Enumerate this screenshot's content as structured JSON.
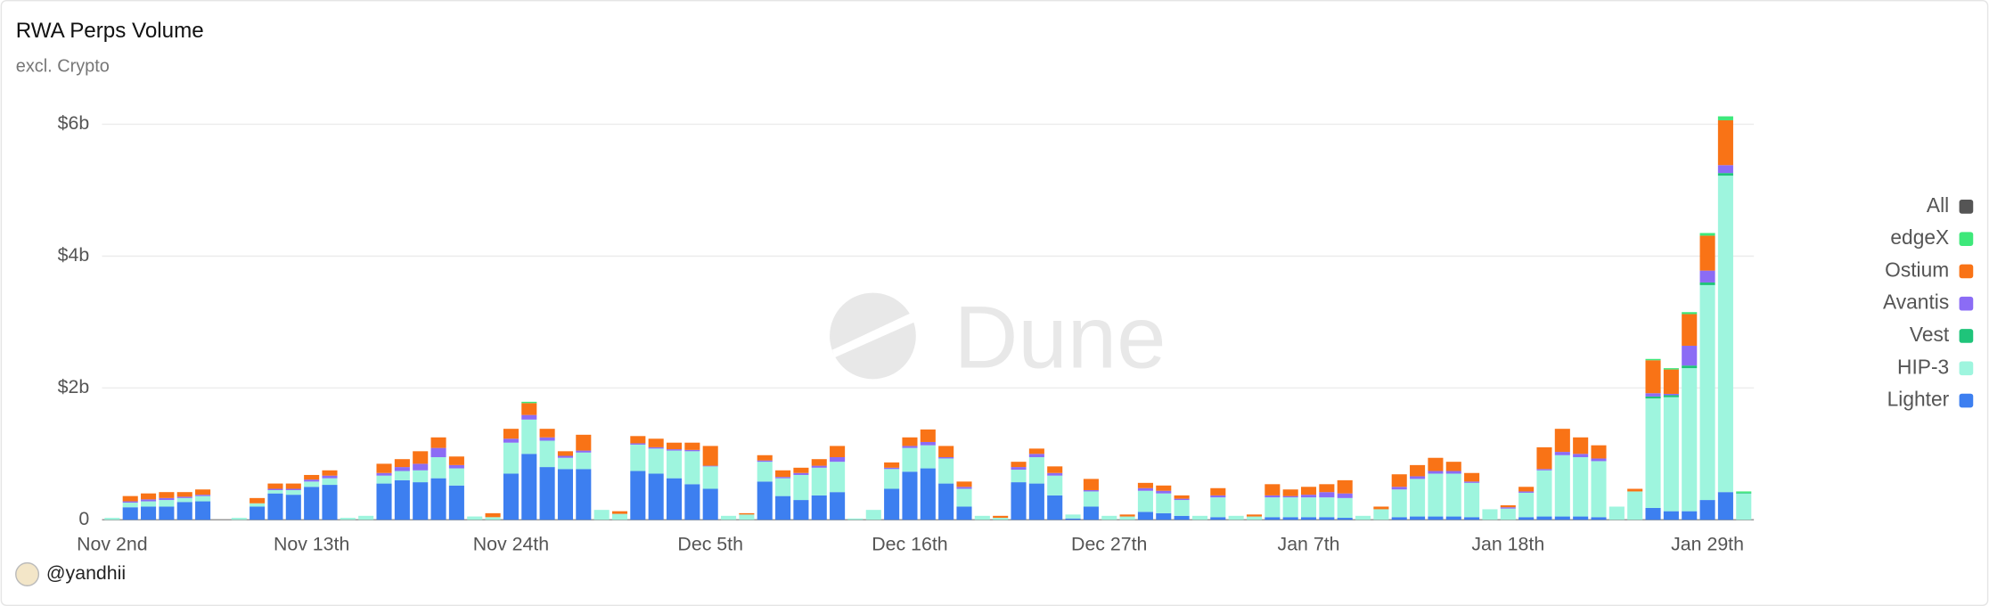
{
  "chart_data": {
    "type": "stacked_bar",
    "title": "RWA Perps Volume",
    "subtitle": "excl. Crypto",
    "watermark": "Dune",
    "author": "@yandhii",
    "categories": [
      "Nov 2nd",
      null,
      null,
      null,
      null,
      null,
      null,
      null,
      null,
      null,
      null,
      "Nov 13th",
      null,
      null,
      null,
      null,
      null,
      null,
      null,
      null,
      null,
      null,
      "Nov 24th",
      null,
      null,
      null,
      null,
      null,
      null,
      null,
      null,
      null,
      null,
      "Dec 5th",
      null,
      null,
      null,
      null,
      null,
      null,
      null,
      null,
      null,
      null,
      "Dec 16th",
      null,
      null,
      null,
      null,
      null,
      null,
      null,
      null,
      null,
      null,
      "Dec 27th",
      null,
      null,
      null,
      null,
      null,
      null,
      null,
      null,
      null,
      null,
      "Jan 7th",
      null,
      null,
      null,
      null,
      null,
      null,
      null,
      null,
      null,
      null,
      "Jan 18th",
      null,
      null,
      null,
      null,
      null,
      null,
      null,
      null,
      null,
      null,
      "Jan 29th",
      null,
      null
    ],
    "ylim": [
      0,
      6
    ],
    "yticks": [
      0,
      {
        "value": 2,
        "label": "$2b"
      },
      {
        "value": 4,
        "label": "$4b"
      },
      {
        "value": 6,
        "label": "$6b"
      }
    ],
    "grid": true,
    "series": [
      {
        "name": "Lighter",
        "color": "#3d7ff0",
        "values": [
          0,
          0.19,
          0.2,
          0.2,
          0.27,
          0.28,
          0,
          0,
          0.2,
          0.4,
          0.38,
          0.5,
          0.53,
          0,
          0,
          0.55,
          0.6,
          0.57,
          0.63,
          0.52,
          0,
          0,
          0.7,
          1.0,
          0.8,
          0.77,
          0.77,
          0,
          0,
          0.74,
          0.7,
          0.63,
          0.54,
          0.47,
          0,
          0,
          0.58,
          0.36,
          0.3,
          0.37,
          0.42,
          0,
          0,
          0.47,
          0.73,
          0.78,
          0.55,
          0.2,
          0,
          0,
          0.57,
          0.55,
          0.37,
          0.02,
          0.2,
          0,
          0,
          0.12,
          0.1,
          0.06,
          0,
          0.04,
          0,
          0,
          0.04,
          0.04,
          0.04,
          0.04,
          0.03,
          0,
          0,
          0.04,
          0.05,
          0.05,
          0.05,
          0.04,
          0,
          0,
          0.04,
          0.05,
          0.05,
          0.05,
          0.04,
          0,
          0,
          0.18,
          0.13,
          0.13,
          0.3,
          0.42,
          0
        ]
      },
      {
        "name": "HIP-3",
        "color": "#9ef5de",
        "values": [
          0.03,
          0.07,
          0.08,
          0.1,
          0.06,
          0.08,
          0,
          0.03,
          0.05,
          0.05,
          0.07,
          0.08,
          0.1,
          0.03,
          0.06,
          0.12,
          0.14,
          0.18,
          0.32,
          0.26,
          0.05,
          0.04,
          0.47,
          0.52,
          0.4,
          0.17,
          0.25,
          0.15,
          0.09,
          0.4,
          0.38,
          0.42,
          0.5,
          0.34,
          0.06,
          0.08,
          0.3,
          0.27,
          0.38,
          0.42,
          0.46,
          0.02,
          0.15,
          0.3,
          0.36,
          0.35,
          0.38,
          0.27,
          0.06,
          0.03,
          0.19,
          0.4,
          0.3,
          0.06,
          0.23,
          0.06,
          0.05,
          0.32,
          0.3,
          0.24,
          0.06,
          0.3,
          0.06,
          0.05,
          0.3,
          0.3,
          0.3,
          0.3,
          0.3,
          0.06,
          0.16,
          0.42,
          0.57,
          0.65,
          0.65,
          0.52,
          0.16,
          0.17,
          0.37,
          0.7,
          0.93,
          0.9,
          0.85,
          0.2,
          0.43,
          1.66,
          1.73,
          2.17,
          3.26,
          4.8,
          0.4
        ]
      },
      {
        "name": "Vest",
        "color": "#1fc47a",
        "values": [
          0,
          0,
          0,
          0,
          0,
          0,
          0,
          0,
          0,
          0,
          0,
          0,
          0,
          0,
          0,
          0,
          0,
          0,
          0,
          0,
          0,
          0,
          0,
          0,
          0,
          0,
          0,
          0,
          0,
          0,
          0,
          0,
          0,
          0,
          0,
          0,
          0,
          0,
          0,
          0,
          0,
          0,
          0,
          0,
          0,
          0,
          0,
          0,
          0,
          0,
          0,
          0,
          0,
          0,
          0,
          0,
          0,
          0,
          0,
          0,
          0,
          0,
          0,
          0,
          0,
          0,
          0,
          0,
          0,
          0,
          0,
          0,
          0,
          0,
          0,
          0,
          0,
          0,
          0,
          0,
          0,
          0,
          0,
          0,
          0,
          0.03,
          0.03,
          0.04,
          0.04,
          0.04,
          0.01
        ]
      },
      {
        "name": "Avantis",
        "color": "#8b6cf5",
        "values": [
          0,
          0.02,
          0.03,
          0.03,
          0.02,
          0.02,
          0,
          0,
          0,
          0.02,
          0.02,
          0.03,
          0.04,
          0,
          0,
          0.04,
          0.06,
          0.1,
          0.14,
          0.05,
          0,
          0,
          0.06,
          0.07,
          0.05,
          0.03,
          0.03,
          0,
          0,
          0.02,
          0.02,
          0.02,
          0.02,
          0.01,
          0,
          0,
          0.02,
          0.02,
          0.03,
          0.03,
          0.07,
          0,
          0,
          0.02,
          0.03,
          0.05,
          0.02,
          0.03,
          0,
          0,
          0.04,
          0.05,
          0.04,
          0,
          0.02,
          0,
          0,
          0.04,
          0.04,
          0.02,
          0,
          0.03,
          0,
          0,
          0.03,
          0.02,
          0.04,
          0.08,
          0.07,
          0,
          0,
          0.04,
          0.04,
          0.04,
          0.04,
          0.02,
          0,
          0.02,
          0.02,
          0.02,
          0.05,
          0.05,
          0.04,
          0,
          0,
          0.05,
          0.02,
          0.3,
          0.18,
          0.12,
          0
        ]
      },
      {
        "name": "Ostium",
        "color": "#f97316",
        "values": [
          0,
          0.08,
          0.09,
          0.09,
          0.07,
          0.08,
          0,
          0,
          0.08,
          0.08,
          0.08,
          0.07,
          0.08,
          0,
          0,
          0.14,
          0.12,
          0.19,
          0.16,
          0.13,
          0,
          0.06,
          0.15,
          0.18,
          0.13,
          0.07,
          0.24,
          0,
          0.04,
          0.11,
          0.13,
          0.1,
          0.11,
          0.3,
          0,
          0.02,
          0.08,
          0.1,
          0.08,
          0.1,
          0.17,
          0,
          0,
          0.08,
          0.13,
          0.19,
          0.17,
          0.08,
          0,
          0.03,
          0.08,
          0.08,
          0.1,
          0,
          0.17,
          0,
          0.03,
          0.08,
          0.08,
          0.05,
          0,
          0.11,
          0,
          0.03,
          0.17,
          0.1,
          0.12,
          0.12,
          0.2,
          0,
          0.04,
          0.19,
          0.17,
          0.2,
          0.14,
          0.13,
          0,
          0.03,
          0.07,
          0.33,
          0.35,
          0.25,
          0.2,
          0,
          0.04,
          0.5,
          0.37,
          0.48,
          0.53,
          0.68,
          0
        ]
      },
      {
        "name": "edgeX",
        "color": "#3ee87a",
        "values": [
          0,
          0,
          0,
          0,
          0,
          0,
          0,
          0,
          0,
          0,
          0,
          0,
          0,
          0,
          0,
          0,
          0,
          0,
          0,
          0,
          0,
          0,
          0,
          0.02,
          0,
          0,
          0,
          0,
          0,
          0,
          0,
          0,
          0,
          0,
          0,
          0,
          0,
          0,
          0,
          0,
          0,
          0,
          0,
          0,
          0,
          0,
          0,
          0,
          0,
          0,
          0,
          0,
          0,
          0,
          0,
          0,
          0,
          0,
          0,
          0,
          0,
          0,
          0,
          0,
          0,
          0,
          0,
          0,
          0,
          0,
          0,
          0,
          0,
          0,
          0,
          0,
          0,
          0,
          0,
          0,
          0,
          0,
          0,
          0,
          0,
          0.02,
          0.02,
          0.03,
          0.04,
          0.06,
          0.02
        ]
      },
      {
        "name": "All",
        "color": "#555555",
        "values": [
          null,
          null,
          null,
          null,
          null,
          null,
          null,
          null,
          null,
          null,
          null,
          null,
          null,
          null,
          null,
          null,
          null,
          null,
          null,
          null,
          null,
          null,
          null,
          null,
          null,
          null,
          null,
          null,
          null,
          null,
          null,
          null,
          null,
          null,
          null,
          null,
          null,
          null,
          null,
          null,
          null,
          null,
          null,
          null,
          null,
          null,
          null,
          null,
          null,
          null,
          null,
          null,
          null,
          null,
          null,
          null,
          null,
          null,
          null,
          null,
          null,
          null,
          null,
          null,
          null,
          null,
          null,
          null,
          null,
          null,
          null,
          null,
          null,
          null,
          null,
          null,
          null,
          null,
          null,
          null,
          null,
          null,
          null,
          null,
          null,
          null,
          null,
          null,
          null,
          null,
          null
        ]
      }
    ]
  }
}
